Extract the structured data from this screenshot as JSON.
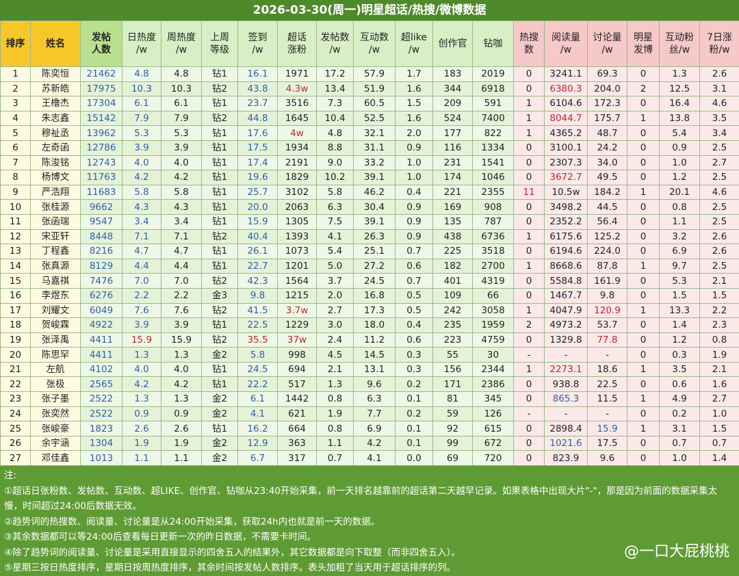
{
  "title": "2026-03-30(周一)明星超话/热搜/微博数据",
  "table": {
    "headers": [
      "排序",
      "姓名",
      "发帖\n人数",
      "日热度\n/w",
      "周热度\n/w",
      "上周\n等级",
      "签到\n/w",
      "超话\n涨粉",
      "发帖数\n/w",
      "互动数\n/w",
      "超like\n/w",
      "创作官",
      "钻咖",
      "热搜\n数",
      "阅读量\n/w",
      "讨论量\n/w",
      "明星\n发博",
      "互动粉\n丝/w",
      "7日涨\n粉/w"
    ],
    "rows": [
      [
        "1",
        "陈奕恒",
        "21462",
        "4.8",
        "4.8",
        "钻1",
        "16.1",
        "1971",
        "17.2",
        "57.9",
        "1.7",
        "183",
        "2019",
        "0",
        "3241.1",
        "69.3",
        "0",
        "1.3",
        "2.6"
      ],
      [
        "2",
        "苏新皓",
        "17975",
        "10.3",
        "10.3",
        "钻2",
        "43.8",
        "4.3w",
        "13.4",
        "51.9",
        "1.6",
        "344",
        "6918",
        "0",
        "6380.3",
        "204.0",
        "2",
        "12.5",
        "3.1"
      ],
      [
        "3",
        "王橹杰",
        "17304",
        "6.1",
        "6.1",
        "钻1",
        "23.7",
        "3516",
        "7.3",
        "60.5",
        "1.5",
        "209",
        "591",
        "1",
        "6104.6",
        "172.3",
        "0",
        "16.4",
        "4.6"
      ],
      [
        "4",
        "朱志鑫",
        "15142",
        "7.9",
        "7.9",
        "钻2",
        "44.8",
        "1645",
        "10.4",
        "52.5",
        "1.6",
        "524",
        "7400",
        "1",
        "8044.7",
        "175.7",
        "1",
        "13.8",
        "3.5"
      ],
      [
        "5",
        "穆祉丞",
        "13962",
        "5.3",
        "5.3",
        "钻1",
        "17.6",
        "4w",
        "4.8",
        "32.1",
        "2.0",
        "177",
        "822",
        "1",
        "4365.2",
        "48.7",
        "0",
        "5.4",
        "3.4"
      ],
      [
        "6",
        "左奇函",
        "12786",
        "3.9",
        "3.9",
        "钻1",
        "17.5",
        "1934",
        "8.8",
        "31.1",
        "0.9",
        "116",
        "1334",
        "0",
        "3100.1",
        "24.2",
        "0",
        "0.9",
        "2.5"
      ],
      [
        "7",
        "陈浚铭",
        "12743",
        "4.0",
        "4.0",
        "钻1",
        "17.4",
        "2191",
        "9.0",
        "33.2",
        "1.0",
        "231",
        "1541",
        "0",
        "2307.3",
        "34.0",
        "0",
        "1.0",
        "2.7"
      ],
      [
        "8",
        "杨博文",
        "11763",
        "4.2",
        "4.2",
        "钻1",
        "19.6",
        "1829",
        "10.2",
        "39.1",
        "1.0",
        "174",
        "1046",
        "0",
        "3672.7",
        "49.5",
        "0",
        "1.2",
        "2.5"
      ],
      [
        "9",
        "严浩翔",
        "11683",
        "5.8",
        "5.8",
        "钻1",
        "25.7",
        "3102",
        "5.8",
        "46.2",
        "0.4",
        "221",
        "2355",
        "11",
        "10.5w",
        "184.2",
        "1",
        "20.1",
        "4.6"
      ],
      [
        "10",
        "张桂源",
        "9662",
        "4.3",
        "4.3",
        "钻1",
        "20.0",
        "2063",
        "6.3",
        "30.4",
        "0.9",
        "169",
        "908",
        "0",
        "3498.2",
        "44.5",
        "0",
        "0.8",
        "2.5"
      ],
      [
        "11",
        "张函瑞",
        "9547",
        "3.4",
        "3.4",
        "钻1",
        "15.9",
        "1305",
        "7.5",
        "39.1",
        "0.9",
        "135",
        "787",
        "0",
        "2352.2",
        "56.4",
        "0",
        "1.1",
        "2.5"
      ],
      [
        "12",
        "宋亚轩",
        "8448",
        "7.1",
        "7.1",
        "钻2",
        "40.4",
        "1393",
        "4.1",
        "26.3",
        "0.9",
        "438",
        "6736",
        "1",
        "6175.6",
        "125.2",
        "0",
        "3.2",
        "2.6"
      ],
      [
        "13",
        "丁程鑫",
        "8216",
        "4.7",
        "4.7",
        "钻1",
        "26.1",
        "1073",
        "5.4",
        "25.1",
        "0.7",
        "225",
        "3518",
        "0",
        "6194.6",
        "224.0",
        "0",
        "6.9",
        "2.6"
      ],
      [
        "14",
        "张真源",
        "8129",
        "4.4",
        "4.4",
        "钻1",
        "22.7",
        "1201",
        "5.0",
        "27.2",
        "0.6",
        "182",
        "2700",
        "1",
        "8668.6",
        "87.8",
        "1",
        "9.7",
        "2.5"
      ],
      [
        "15",
        "马嘉祺",
        "7476",
        "7.0",
        "7.0",
        "钻2",
        "42.3",
        "1564",
        "3.7",
        "24.5",
        "0.7",
        "401",
        "4319",
        "0",
        "5584.8",
        "161.9",
        "0",
        "5.3",
        "2.1"
      ],
      [
        "16",
        "李煜东",
        "6276",
        "2.2",
        "2.2",
        "金3",
        "9.8",
        "1215",
        "2.0",
        "16.8",
        "0.5",
        "109",
        "66",
        "0",
        "1467.7",
        "9.8",
        "0",
        "1.5",
        "1.5"
      ],
      [
        "17",
        "刘耀文",
        "6049",
        "7.6",
        "7.6",
        "钻2",
        "41.5",
        "3.7w",
        "2.7",
        "17.3",
        "0.5",
        "242",
        "3058",
        "1",
        "4047.9",
        "120.9",
        "1",
        "13.3",
        "2.2"
      ],
      [
        "18",
        "贺峻霖",
        "4922",
        "3.9",
        "3.9",
        "钻1",
        "22.5",
        "1229",
        "3.0",
        "18.0",
        "0.4",
        "235",
        "1959",
        "2",
        "4973.2",
        "53.7",
        "0",
        "1.4",
        "2.3"
      ],
      [
        "19",
        "张泽禹",
        "4411",
        "15.9",
        "15.9",
        "钻2",
        "35.5",
        "37w",
        "2.4",
        "11.2",
        "0.6",
        "223",
        "4759",
        "0",
        "1329.8",
        "77.8",
        "0",
        "1.2",
        "0.8"
      ],
      [
        "20",
        "陈思罕",
        "4411",
        "1.3",
        "1.3",
        "金2",
        "5.8",
        "998",
        "4.5",
        "14.5",
        "0.3",
        "55",
        "30",
        "-",
        "-",
        "-",
        "0",
        "0.3",
        "1.9"
      ],
      [
        "21",
        "左航",
        "4102",
        "4.0",
        "4.0",
        "钻1",
        "24.5",
        "694",
        "2.1",
        "13.1",
        "0.3",
        "156",
        "2344",
        "1",
        "2273.1",
        "18.6",
        "1",
        "3.5",
        "2.1"
      ],
      [
        "22",
        "张极",
        "2565",
        "4.2",
        "4.2",
        "钻1",
        "22.2",
        "517",
        "1.3",
        "9.6",
        "0.2",
        "171",
        "2386",
        "0",
        "938.8",
        "22.5",
        "0",
        "0.6",
        "1.6"
      ],
      [
        "23",
        "张子墨",
        "2522",
        "1.3",
        "1.3",
        "金2",
        "6.1",
        "1442",
        "0.8",
        "6.3",
        "0.1",
        "81",
        "345",
        "0",
        "865.3",
        "11.5",
        "1",
        "4.9",
        "2.7"
      ],
      [
        "24",
        "张奕然",
        "2522",
        "0.9",
        "0.9",
        "金2",
        "4.1",
        "621",
        "1.9",
        "7.7",
        "0.2",
        "59",
        "126",
        "-",
        "-",
        "-",
        "0",
        "0.2",
        "1.0"
      ],
      [
        "25",
        "张峻豪",
        "1823",
        "2.6",
        "2.6",
        "钻1",
        "16.2",
        "664",
        "0.8",
        "6.9",
        "0.1",
        "92",
        "615",
        "0",
        "2898.4",
        "15.9",
        "1",
        "3.1",
        "1.5"
      ],
      [
        "26",
        "余宇涵",
        "1304",
        "1.9",
        "1.9",
        "金2",
        "12.9",
        "363",
        "1.1",
        "4.2",
        "0.1",
        "99",
        "672",
        "0",
        "1021.6",
        "17.5",
        "0",
        "0.7",
        "0.7"
      ],
      [
        "27",
        "邓佳鑫",
        "1013",
        "1.1",
        "1.1",
        "金2",
        "6.7",
        "317",
        "0.7",
        "4.1",
        "0.0",
        "69",
        "720",
        "0",
        "823.9",
        "9.6",
        "0",
        "1.0",
        "1.4"
      ]
    ]
  },
  "notes": [
    "注:",
    "①超话日张粉数、发帖数、互动数、超LIKE、创作官、钻咖从23:40开始采集，前一天排名越靠前的超话第二天越早记录。如果表格中出现大片\"-\"，那是因为前面的数据采集太慢，时间超过24:00后数据无效。",
    "②趋势词的热搜数、阅读量、讨论量是从24:00开始采集，获取24h内也就是前一天的数据。",
    "③其余数据都可以等24:00后查看每日更新一次的昨日数据，不需要卡时间。",
    "④除了趋势词的阅读量、讨论量是采用直接显示的四舍五入的结果外，其它数据都是向下取整（而非四舍五入）。",
    "⑤星期三按日热度排序，星期日按周热度排序，其余时间按发帖人数排序。表头加粗了当天用于超话排序的列。"
  ],
  "watermark": "@一口大屁桃桃"
}
